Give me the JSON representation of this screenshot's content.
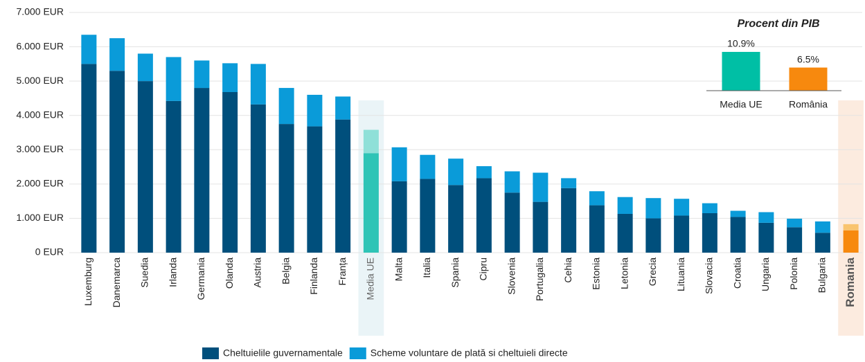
{
  "chart_data": [
    {
      "type": "bar",
      "stacked": true,
      "categories": [
        "Luxemburg",
        "Danemarca",
        "Suedia",
        "Irlanda",
        "Germania",
        "Olanda",
        "Austria",
        "Belgia",
        "Finlanda",
        "Franța",
        "Media UE",
        "Malta",
        "Italia",
        "Spania",
        "Cipru",
        "Slovenia",
        "Portugalia",
        "Cehia",
        "Estonia",
        "Letonia",
        "Grecia",
        "Lituania",
        "Slovacia",
        "Croatia",
        "Ungaria",
        "Polonia",
        "Bulgaria",
        "Romania"
      ],
      "series": [
        {
          "name": "Cheltuielile guvernamentale",
          "color": "#004f7c",
          "values": [
            5500,
            5300,
            5000,
            4420,
            4800,
            4680,
            4320,
            3750,
            3680,
            3880,
            2900,
            2080,
            2150,
            1970,
            2170,
            1750,
            1480,
            1880,
            1380,
            1130,
            1000,
            1080,
            1150,
            1040,
            870,
            740,
            580,
            650
          ]
        },
        {
          "name": "Scheme voluntare de plată si cheltuieli directe",
          "color": "#0a9bd9",
          "values": [
            850,
            950,
            800,
            1280,
            800,
            840,
            1180,
            1050,
            920,
            670,
            680,
            990,
            700,
            770,
            350,
            620,
            850,
            290,
            410,
            490,
            590,
            490,
            290,
            180,
            310,
            250,
            330,
            180
          ]
        }
      ],
      "highlights": [
        {
          "category": "Media UE",
          "colors": [
            "#2ec4b6",
            "#8fe0d8"
          ],
          "background": "#eaf4f7",
          "bold": false
        },
        {
          "category": "Romania",
          "colors": [
            "#f7890e",
            "#f9c46f"
          ],
          "background": "#fcebdf",
          "bold": true
        }
      ],
      "ylim": [
        0,
        7000
      ],
      "yticks": [
        {
          "value": 0,
          "label": "0 EUR"
        },
        {
          "value": 1000,
          "label": "1.000 EUR"
        },
        {
          "value": 2000,
          "label": "2.000 EUR"
        },
        {
          "value": 3000,
          "label": "3.000 EUR"
        },
        {
          "value": 4000,
          "label": "4.000 EUR"
        },
        {
          "value": 5000,
          "label": "5.000 EUR"
        },
        {
          "value": 6000,
          "label": "6.000 EUR"
        },
        {
          "value": 7000,
          "label": "7.000 EUR"
        }
      ],
      "grid": true,
      "legend": "bottom"
    },
    {
      "type": "bar",
      "title": "Procent din PIB",
      "categories": [
        "Media UE",
        "România"
      ],
      "values": [
        10.9,
        6.5
      ],
      "value_labels": [
        "10.9%",
        "6.5%"
      ],
      "colors": [
        "#00bfa5",
        "#f7890e"
      ]
    }
  ]
}
